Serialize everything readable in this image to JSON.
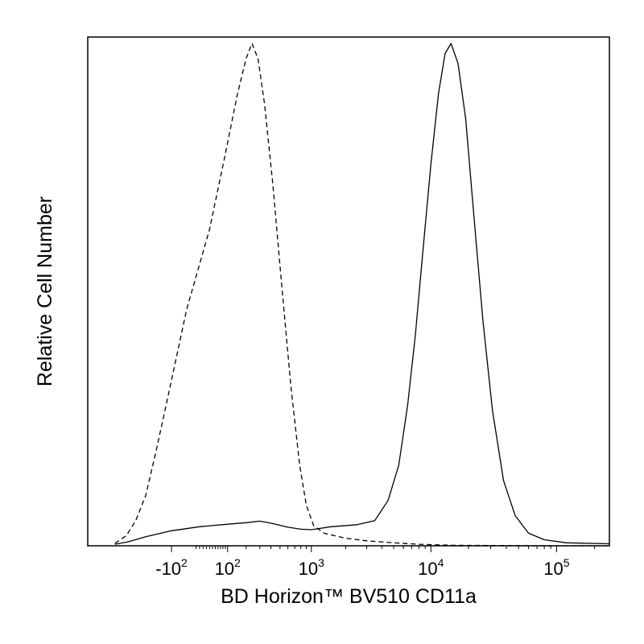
{
  "chart_data": {
    "type": "line",
    "xlabel": "BD Horizon™ BV510 CD11a",
    "ylabel": "Relative Cell Number",
    "x_scale": "biexponential",
    "xlim": [
      -1000,
      262144
    ],
    "ylim": [
      0,
      100
    ],
    "grid": false,
    "legend": "none",
    "x_ticks": [
      {
        "value": -100,
        "base": "-10",
        "exp": "2"
      },
      {
        "value": 100,
        "base": "10",
        "exp": "2"
      },
      {
        "value": 1000,
        "base": "10",
        "exp": "3"
      },
      {
        "value": 10000,
        "base": "10",
        "exp": "4"
      },
      {
        "value": 100000,
        "base": "10",
        "exp": "5"
      }
    ],
    "series": [
      {
        "style": "dashed",
        "color": "#000000",
        "points": [
          [
            -550,
            0.5
          ],
          [
            -420,
            2
          ],
          [
            -330,
            5
          ],
          [
            -250,
            10
          ],
          [
            -180,
            19
          ],
          [
            -110,
            31
          ],
          [
            -40,
            47
          ],
          [
            30,
            63
          ],
          [
            90,
            78
          ],
          [
            150,
            90
          ],
          [
            200,
            97
          ],
          [
            240,
            100
          ],
          [
            285,
            97
          ],
          [
            340,
            88
          ],
          [
            420,
            72
          ],
          [
            520,
            52
          ],
          [
            640,
            32
          ],
          [
            780,
            16
          ],
          [
            900,
            8
          ],
          [
            1050,
            4
          ],
          [
            1300,
            2.5
          ],
          [
            2000,
            1.5
          ],
          [
            3000,
            1
          ],
          [
            5000,
            0.6
          ],
          [
            8000,
            0.3
          ],
          [
            15000,
            0.1
          ],
          [
            100000,
            0
          ],
          [
            262144,
            0
          ]
        ]
      },
      {
        "style": "solid",
        "color": "#000000",
        "points": [
          [
            -550,
            0.3
          ],
          [
            -400,
            0.8
          ],
          [
            -250,
            1.8
          ],
          [
            -100,
            3
          ],
          [
            0,
            3.8
          ],
          [
            100,
            4.3
          ],
          [
            200,
            4.6
          ],
          [
            300,
            4.9
          ],
          [
            400,
            4.5
          ],
          [
            600,
            3.7
          ],
          [
            800,
            3.3
          ],
          [
            1000,
            3.2
          ],
          [
            1500,
            3.8
          ],
          [
            2500,
            4.2
          ],
          [
            3500,
            5
          ],
          [
            4500,
            9
          ],
          [
            5500,
            16
          ],
          [
            6500,
            28
          ],
          [
            7500,
            42
          ],
          [
            8500,
            57
          ],
          [
            10000,
            76
          ],
          [
            11500,
            90
          ],
          [
            13000,
            98
          ],
          [
            14500,
            100
          ],
          [
            16500,
            96
          ],
          [
            19000,
            85
          ],
          [
            22000,
            66
          ],
          [
            26000,
            45
          ],
          [
            31000,
            27
          ],
          [
            38000,
            13
          ],
          [
            47000,
            6
          ],
          [
            60000,
            2.5
          ],
          [
            80000,
            1.2
          ],
          [
            120000,
            0.6
          ],
          [
            262144,
            0.4
          ]
        ]
      }
    ]
  }
}
